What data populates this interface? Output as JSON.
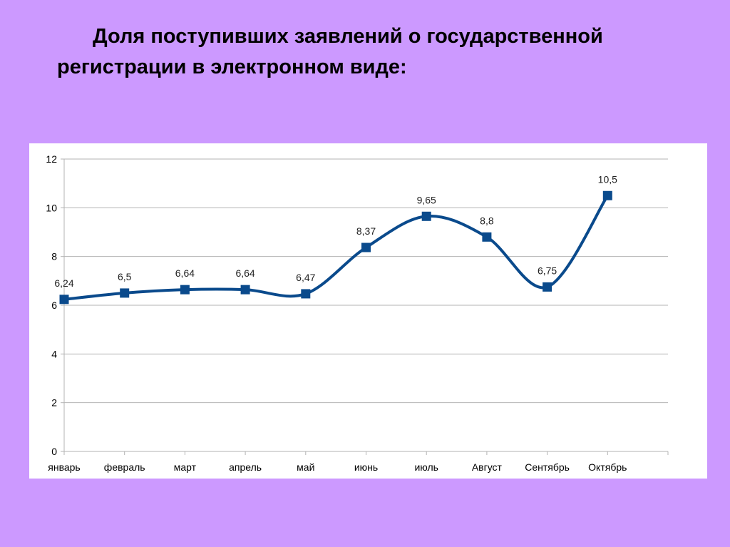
{
  "slide": {
    "title_line_1": "Доля поступивших заявлений о государственной",
    "title_line_2": "регистрации в электронном виде:"
  },
  "chart_data": {
    "type": "line",
    "categories": [
      "январь",
      "февраль",
      "март",
      "апрель",
      "май",
      "июнь",
      "июль",
      "Август",
      "Сентябрь",
      "Октябрь"
    ],
    "series": [
      {
        "values": [
          6.24,
          6.5,
          6.64,
          6.64,
          6.47,
          8.37,
          9.65,
          8.8,
          6.75,
          10.5
        ],
        "data_labels": [
          "6,24",
          "6,5",
          "6,64",
          "6,64",
          "6,47",
          "8,37",
          "9,65",
          "8,8",
          "6,75",
          "10,5"
        ]
      }
    ],
    "y_ticks": [
      0,
      2,
      4,
      6,
      8,
      10,
      12
    ],
    "ylim": [
      0,
      12
    ],
    "smooth": true,
    "grid": "horizontal",
    "legend": "none",
    "colors": {
      "line": "#0a4a8c",
      "marker": "#0a4a8c",
      "grid": "#b3b3b3",
      "axis": "#b3b3b3"
    }
  }
}
